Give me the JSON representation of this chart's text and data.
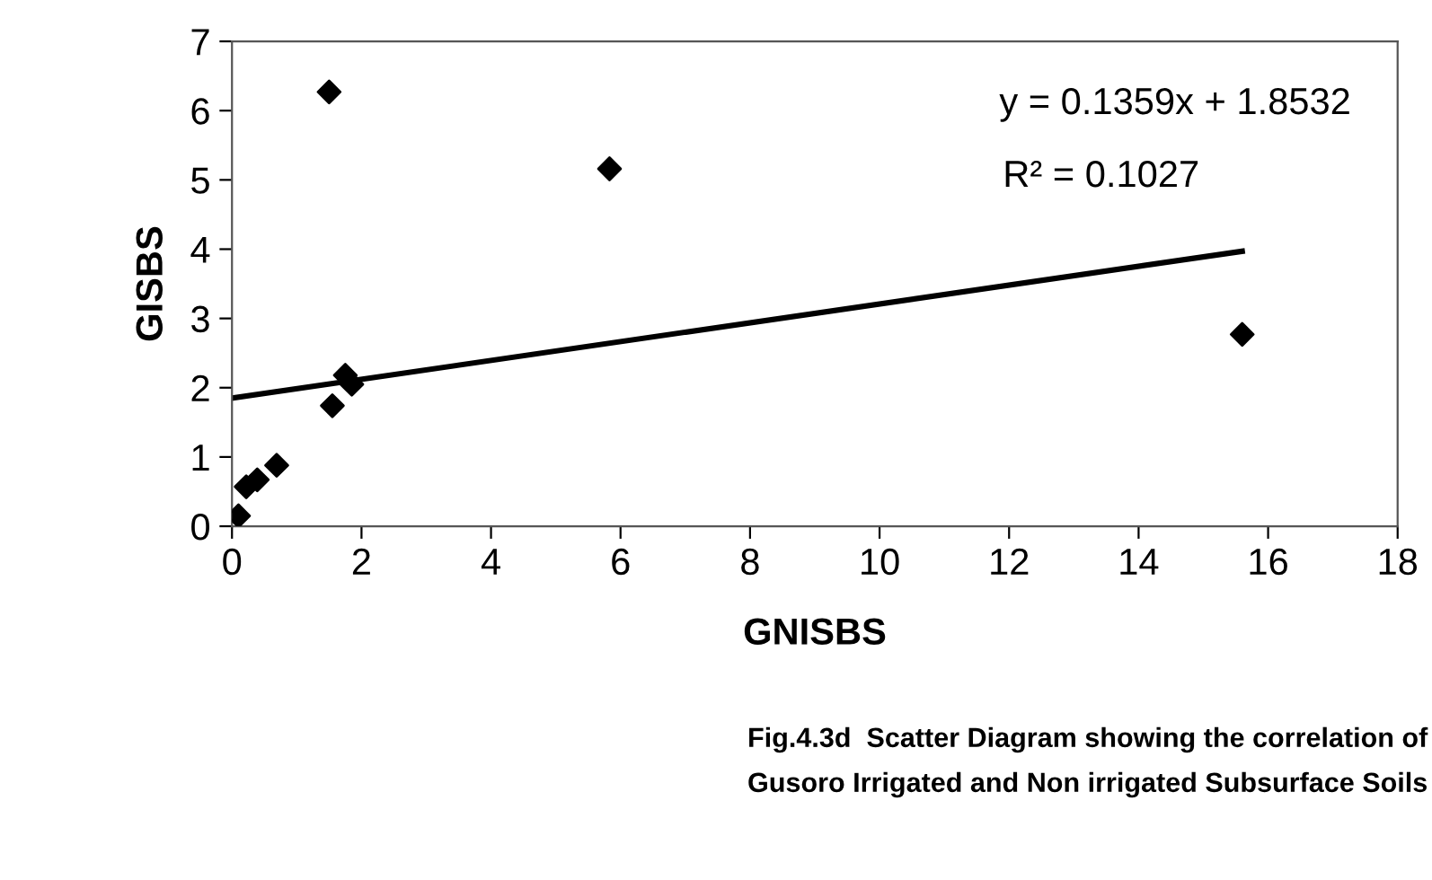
{
  "chart_data": {
    "type": "scatter",
    "xlabel": "GNISBS",
    "ylabel": "GISBS",
    "xlim": [
      0,
      18
    ],
    "xticks": [
      0,
      2,
      4,
      6,
      8,
      10,
      12,
      14,
      16,
      18
    ],
    "ylim": [
      0,
      7
    ],
    "yticks": [
      0,
      1,
      2,
      3,
      4,
      5,
      6,
      7
    ],
    "grid": false,
    "marker": "diamond",
    "series": [
      {
        "color": "#000000",
        "x": [
          0.1,
          0.22,
          0.39,
          0.69,
          1.5,
          1.55,
          1.75,
          1.85,
          5.83,
          15.6
        ],
        "values": [
          0.15,
          0.57,
          0.67,
          0.88,
          6.27,
          1.74,
          2.18,
          2.05,
          5.16,
          2.77
        ]
      },
      {
        "type": "line",
        "color": "#000000",
        "x": [
          0,
          15.6
        ],
        "values": [
          1.85,
          3.97
        ],
        "marker": "none"
      }
    ],
    "annotations": [
      "y = 0.1359x + 1.8532",
      "R² = 0.1027",
      "Fig.4.3d  Scatter Diagram showing the correlation of",
      "Gusoro Irrigated and Non irrigated Subsurface Soils"
    ]
  }
}
